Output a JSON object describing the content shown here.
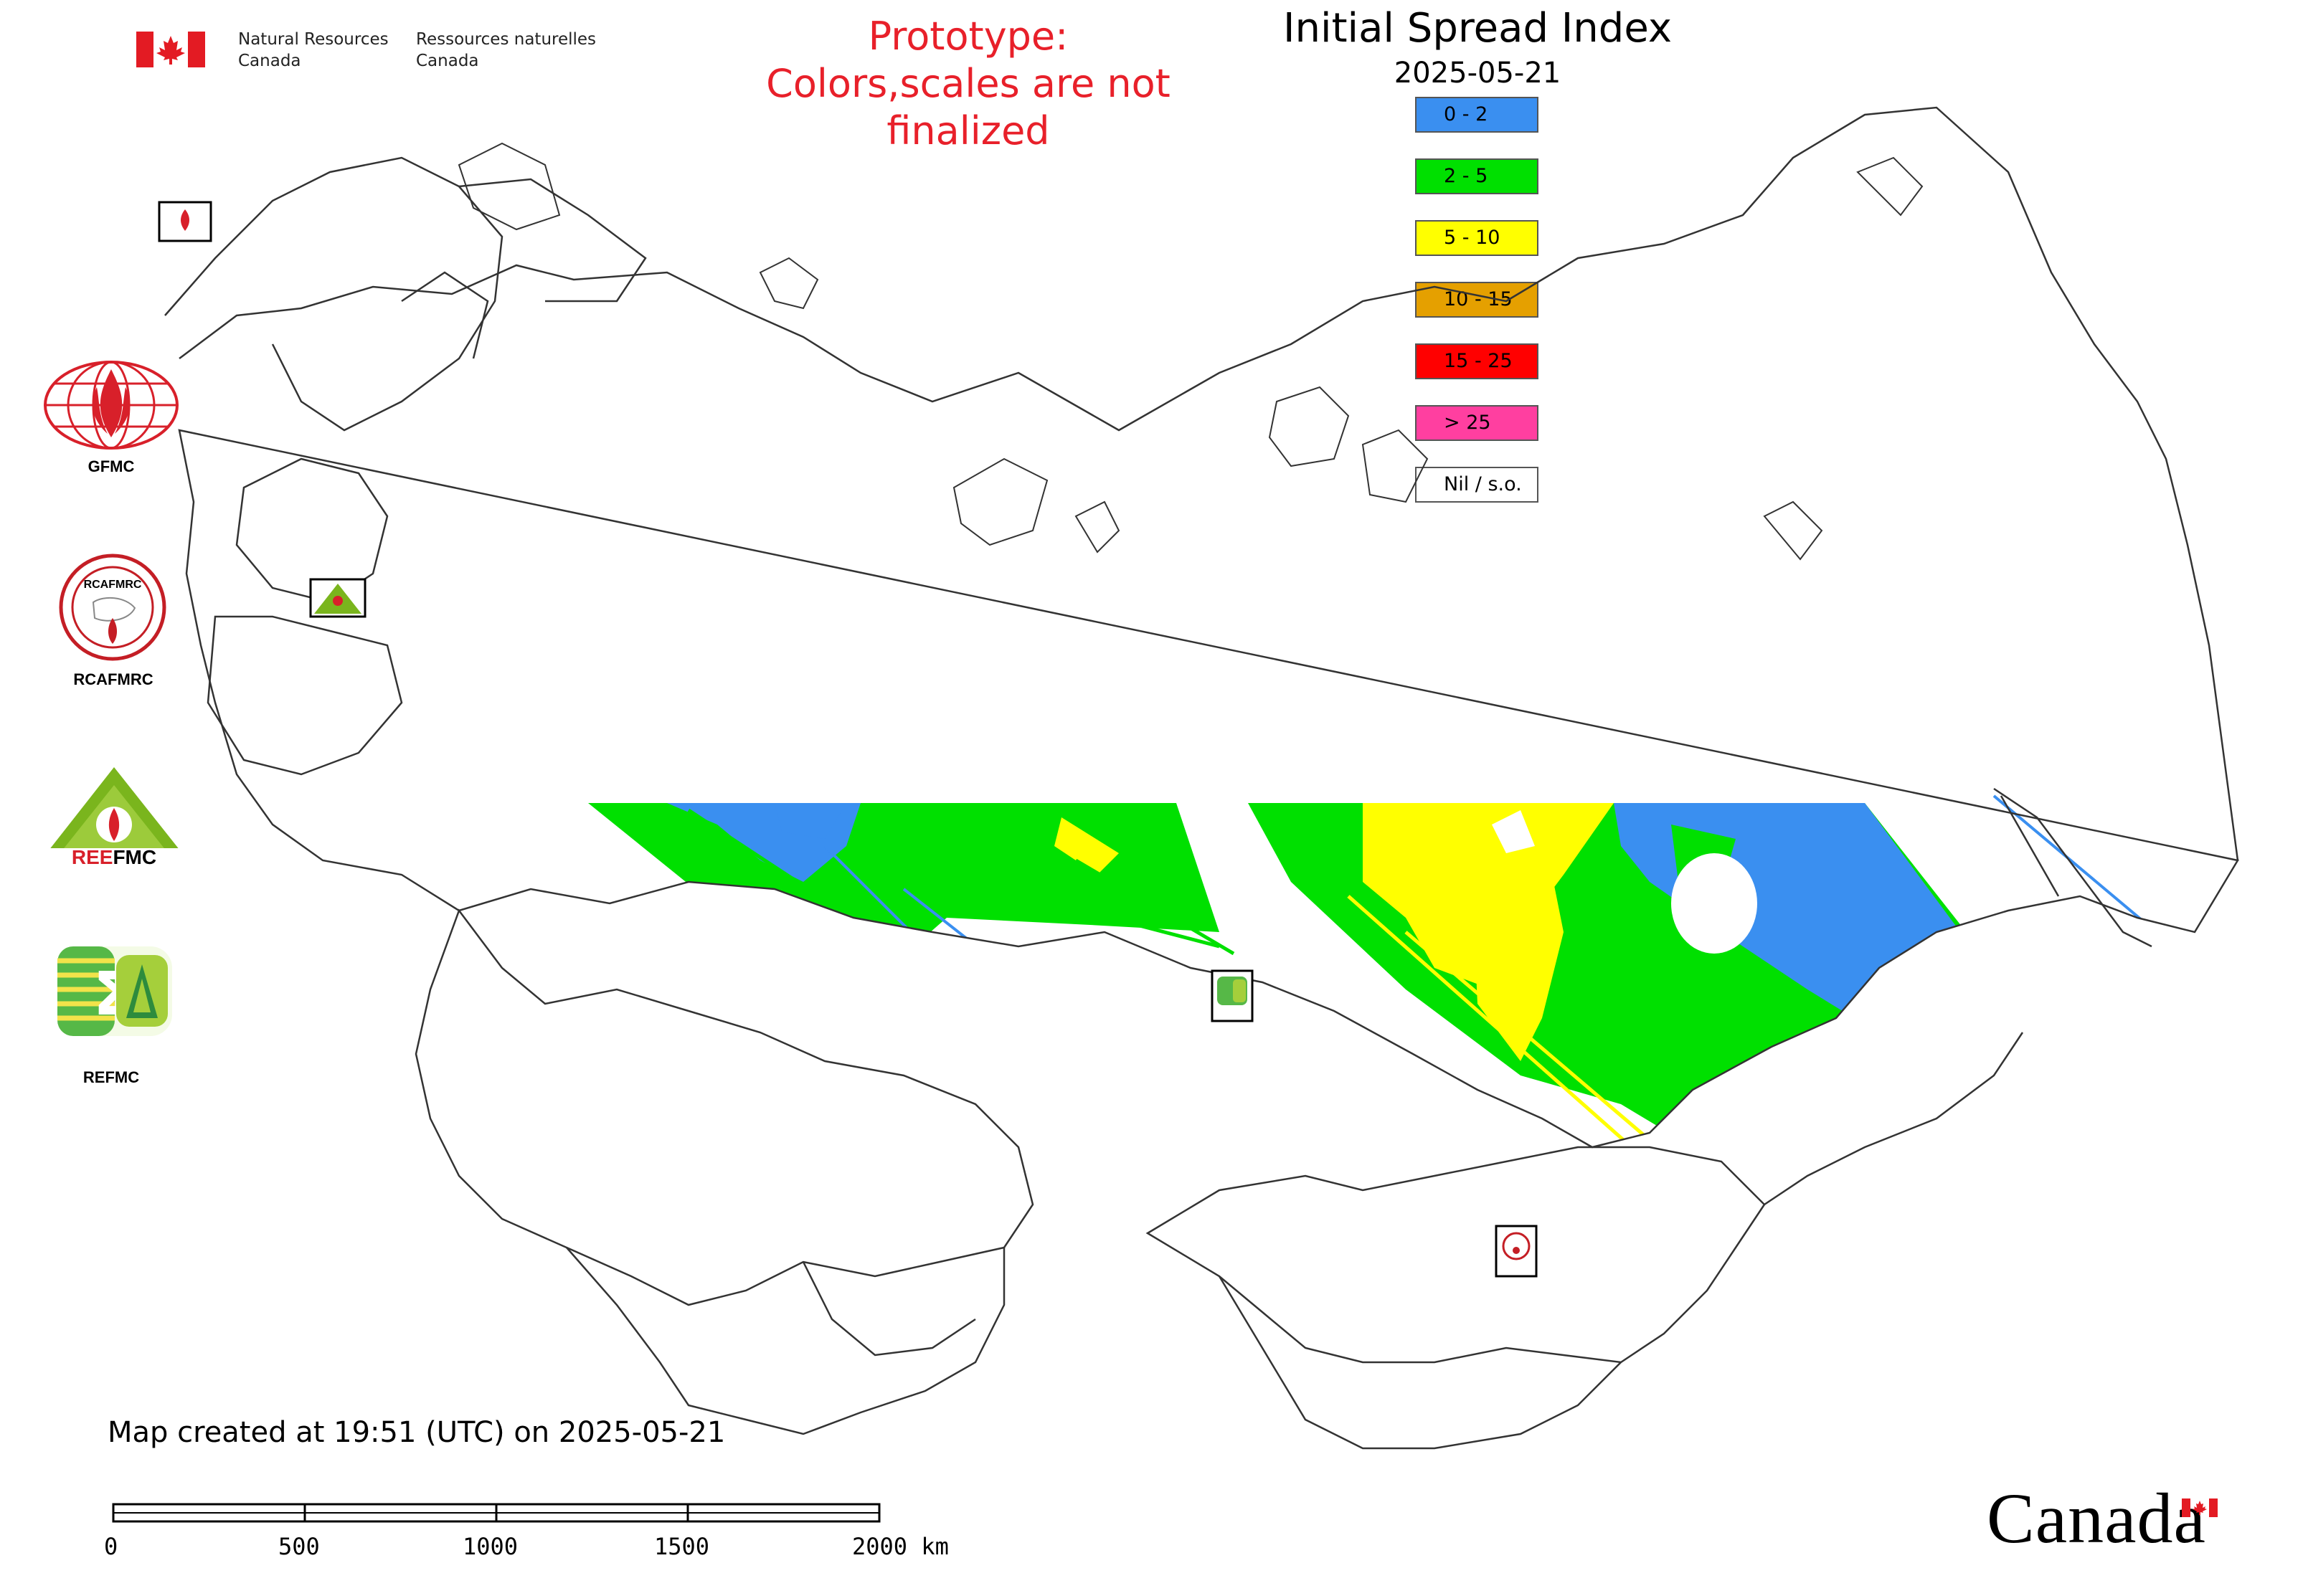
{
  "header": {
    "dept_en_line1": "Natural Resources",
    "dept_en_line2": "Canada",
    "dept_fr_line1": "Ressources naturelles",
    "dept_fr_line2": "Canada",
    "prototype_line1": "Prototype:",
    "prototype_line2": "Colors,scales are not finalized",
    "title": "Initial Spread Index",
    "date": "2025-05-21"
  },
  "legend": [
    {
      "label": "0 - 2",
      "color": "#3a8ff0"
    },
    {
      "label": "2 - 5",
      "color": "#00e000"
    },
    {
      "label": "5 - 10",
      "color": "#ffff00"
    },
    {
      "label": "10 - 15",
      "color": "#e5a000"
    },
    {
      "label": "15 - 25",
      "color": "#ff0000"
    },
    {
      "label": "> 25",
      "color": "#ff3fa0"
    },
    {
      "label": "Nil / s.o.",
      "color": "#ffffff"
    }
  ],
  "organizations": [
    {
      "name": "GFMC",
      "icon": "gfmc-logo-icon"
    },
    {
      "name": "RCAFMRC",
      "icon": "rcafmrc-logo-icon"
    },
    {
      "name": "REEFMC",
      "icon": "reefmc-logo-icon"
    },
    {
      "name": "REFMC",
      "icon": "refmc-logo-icon"
    }
  ],
  "map_markers": [
    {
      "name": "GFMC",
      "icon": "gfmc-marker-icon"
    },
    {
      "name": "REEFMC",
      "icon": "reefmc-marker-icon"
    },
    {
      "name": "REFMC",
      "icon": "refmc-marker-icon"
    },
    {
      "name": "RCAFMRC",
      "icon": "rcafmrc-marker-icon"
    }
  ],
  "footer": {
    "created": "Map created at 19:51 (UTC) on 2025-05-21",
    "scale_labels": [
      "0",
      "500",
      "1000",
      "1500",
      "2000 km"
    ],
    "wordmark": "Canada"
  },
  "colors": {
    "prototype_text": "#e8202a",
    "border": "#333333"
  }
}
